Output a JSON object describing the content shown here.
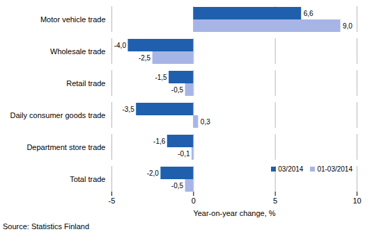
{
  "chart_data": {
    "type": "bar",
    "orientation": "horizontal",
    "caption": "Source: Statistics Finland",
    "xlabel": "Year-on-year change, %",
    "categories": [
      "Motor vehicle trade",
      "Wholesale trade",
      "Retail trade",
      "Daily consumer goods trade",
      "Department store trade",
      "Total trade"
    ],
    "series": [
      {
        "name": "03/2014",
        "color": "#1f5fad",
        "values": [
          6.6,
          -4.0,
          -1.5,
          -3.5,
          -1.6,
          -2.0
        ],
        "value_labels": [
          "6,6",
          "-4,0",
          "-1,5",
          "-3,5",
          "-1,6",
          "-2,0"
        ]
      },
      {
        "name": "01-03/2014",
        "color": "#a7b5e6",
        "values": [
          9.0,
          -2.5,
          -0.5,
          0.3,
          -0.1,
          -0.5
        ],
        "value_labels": [
          "9,0",
          "-2,5",
          "-0,5",
          "0,3",
          "-0,1",
          "-0,5"
        ]
      }
    ],
    "xlim": [
      -5,
      10
    ],
    "xticks": [
      -5,
      0,
      5,
      10
    ],
    "grid": true,
    "legend": "lower right",
    "data_labels": true
  }
}
